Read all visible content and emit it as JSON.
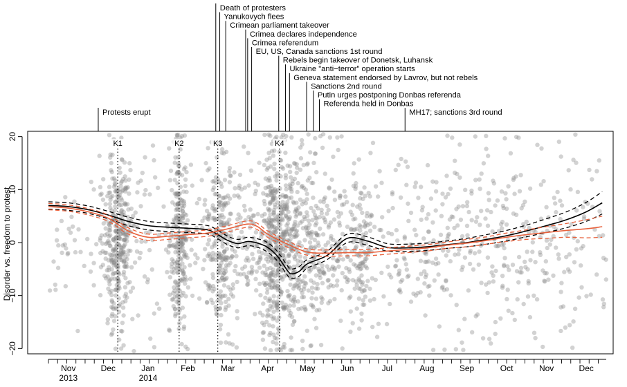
{
  "chart_data": {
    "type": "scatter",
    "title": "",
    "ylabel": "Disorder vs. freedom to protest",
    "xlabel": "",
    "ylim": [
      -21,
      21
    ],
    "xlim": [
      0,
      14.0
    ],
    "grid": false,
    "y_ticks": [
      -20,
      -10,
      0,
      10,
      20
    ],
    "month_ticks": [
      {
        "x": 0.5,
        "label": "Nov",
        "year": "2013"
      },
      {
        "x": 1.5,
        "label": "Dec",
        "year": ""
      },
      {
        "x": 2.5,
        "label": "Jan",
        "year": "2014"
      },
      {
        "x": 3.5,
        "label": "Feb",
        "year": ""
      },
      {
        "x": 4.5,
        "label": "Mar",
        "year": ""
      },
      {
        "x": 5.5,
        "label": "Apr",
        "year": ""
      },
      {
        "x": 6.5,
        "label": "May",
        "year": ""
      },
      {
        "x": 7.5,
        "label": "Jun",
        "year": ""
      },
      {
        "x": 8.5,
        "label": "Jul",
        "year": ""
      },
      {
        "x": 9.5,
        "label": "Aug",
        "year": ""
      },
      {
        "x": 10.5,
        "label": "Sep",
        "year": ""
      },
      {
        "x": 11.5,
        "label": "Oct",
        "year": ""
      },
      {
        "x": 12.5,
        "label": "Nov",
        "year": ""
      },
      {
        "x": 13.5,
        "label": "Dec",
        "year": ""
      }
    ],
    "k_lines": [
      {
        "label": "K1",
        "x": 1.74
      },
      {
        "label": "K2",
        "x": 3.28
      },
      {
        "label": "K3",
        "x": 4.25
      },
      {
        "label": "K4",
        "x": 5.8
      }
    ],
    "events": [
      {
        "label": "Protests erupt",
        "x": 1.25
      },
      {
        "label": "Death of protesters",
        "x": 4.2
      },
      {
        "label": "Yanukovych flees",
        "x": 4.3
      },
      {
        "label": "Crimean parliament takeover",
        "x": 4.45
      },
      {
        "label": "Crimea declares independence",
        "x": 4.95
      },
      {
        "label": "Crimea referendum",
        "x": 5.0
      },
      {
        "label": "EU, US, Canada sanctions 1st round",
        "x": 5.1
      },
      {
        "label": "Rebels begin takeover of Donetsk, Luhansk",
        "x": 5.78
      },
      {
        "label": "Ukraine \"anti−terror\" operation starts",
        "x": 5.95
      },
      {
        "label": "Geneva statement endorsed by Lavrov, but not rebels",
        "x": 6.05
      },
      {
        "label": "Sanctions 2nd round",
        "x": 6.48
      },
      {
        "label": "Putin urges postponing Donbas referenda",
        "x": 6.65
      },
      {
        "label": "Referenda held in Donbas",
        "x": 6.8
      },
      {
        "label": "MH17; sanctions 3rd round",
        "x": 8.95
      }
    ],
    "series": [
      {
        "color": "#000000",
        "style": "solid",
        "x": [
          0,
          0.5,
          1.0,
          1.5,
          2.0,
          2.5,
          3.0,
          3.5,
          4.0,
          4.25,
          4.5,
          4.75,
          5.0,
          5.25,
          5.5,
          5.75,
          6.0,
          6.1,
          6.3,
          6.5,
          7.0,
          7.5,
          8.0,
          8.5,
          9.0,
          9.5,
          10.0,
          10.5,
          11.0,
          11.5,
          12.0,
          12.5,
          13.0,
          13.5,
          13.9
        ],
        "y": [
          7.0,
          6.8,
          6.2,
          5.2,
          4.0,
          3.2,
          2.9,
          2.7,
          2.4,
          1.5,
          0.4,
          -0.2,
          0.2,
          -0.1,
          -0.9,
          -2.6,
          -5.3,
          -5.9,
          -5.4,
          -4.0,
          -2.4,
          0.8,
          0.3,
          -0.9,
          -1.0,
          -0.8,
          -0.4,
          0.0,
          0.6,
          1.3,
          2.2,
          3.2,
          4.3,
          5.8,
          7.5
        ]
      },
      {
        "color": "#000000",
        "style": "dashed",
        "x": [
          0,
          0.5,
          1.0,
          1.5,
          2.0,
          2.5,
          3.0,
          3.5,
          4.0,
          4.25,
          4.5,
          4.75,
          5.0,
          5.25,
          5.5,
          5.75,
          6.0,
          6.1,
          6.3,
          6.5,
          7.0,
          7.5,
          8.0,
          8.5,
          9.0,
          9.5,
          10.0,
          10.5,
          11.0,
          11.5,
          12.0,
          12.5,
          13.0,
          13.5,
          13.9
        ],
        "y": [
          7.7,
          7.5,
          6.9,
          5.9,
          4.8,
          4.0,
          3.7,
          3.5,
          3.2,
          2.3,
          1.2,
          0.6,
          1.0,
          0.7,
          0.0,
          -1.7,
          -4.4,
          -5.0,
          -4.5,
          -3.2,
          -1.6,
          1.6,
          1.1,
          -0.2,
          -0.3,
          -0.1,
          0.3,
          0.8,
          1.5,
          2.3,
          3.3,
          4.5,
          5.8,
          7.6,
          9.6
        ]
      },
      {
        "color": "#000000",
        "style": "dashed",
        "x": [
          0,
          0.5,
          1.0,
          1.5,
          2.0,
          2.5,
          3.0,
          3.5,
          4.0,
          4.25,
          4.5,
          4.75,
          5.0,
          5.25,
          5.5,
          5.75,
          6.0,
          6.1,
          6.3,
          6.5,
          7.0,
          7.5,
          8.0,
          8.5,
          9.0,
          9.5,
          10.0,
          10.5,
          11.0,
          11.5,
          12.0,
          12.5,
          13.0,
          13.5,
          13.9
        ],
        "y": [
          6.3,
          6.1,
          5.5,
          4.5,
          3.2,
          2.4,
          2.1,
          1.9,
          1.6,
          0.7,
          -0.4,
          -1.0,
          -0.6,
          -0.9,
          -1.8,
          -3.5,
          -6.2,
          -6.8,
          -6.3,
          -4.8,
          -3.2,
          0.0,
          -0.5,
          -1.6,
          -1.7,
          -1.5,
          -1.1,
          -0.8,
          -0.3,
          0.3,
          1.1,
          1.9,
          2.8,
          4.0,
          5.4
        ]
      },
      {
        "color": "#e8613c",
        "style": "solid",
        "x": [
          0,
          0.5,
          1.0,
          1.5,
          2.0,
          2.5,
          3.0,
          3.5,
          4.0,
          4.5,
          5.0,
          5.25,
          5.5,
          6.0,
          6.5,
          7.0,
          7.5,
          8.0,
          8.5,
          9.0,
          9.5,
          10.0,
          10.5,
          11.0,
          11.5,
          12.0,
          12.5,
          13.0,
          13.5,
          13.9
        ],
        "y": [
          6.8,
          6.5,
          5.8,
          4.6,
          2.2,
          1.0,
          1.2,
          1.5,
          1.8,
          2.6,
          3.5,
          3.0,
          1.6,
          -0.3,
          -1.8,
          -2.0,
          -1.9,
          -1.9,
          -1.6,
          -1.3,
          -1.0,
          -0.5,
          -0.1,
          0.4,
          1.0,
          1.5,
          1.9,
          2.3,
          2.6,
          3.0
        ]
      },
      {
        "color": "#e8613c",
        "style": "dashed",
        "x": [
          0,
          0.5,
          1.0,
          1.5,
          2.0,
          2.5,
          3.0,
          3.5,
          4.0,
          4.5,
          5.0,
          5.25,
          5.5,
          6.0,
          6.5,
          7.0,
          7.5,
          8.0,
          8.5,
          9.0,
          9.5,
          10.0,
          10.5,
          11.0,
          11.5,
          12.0,
          12.5,
          13.0,
          13.5,
          13.9
        ],
        "y": [
          7.4,
          7.1,
          6.4,
          5.2,
          2.8,
          1.6,
          1.8,
          2.1,
          2.4,
          3.2,
          4.1,
          3.6,
          2.2,
          0.3,
          -1.2,
          -1.4,
          -1.3,
          -1.3,
          -1.0,
          -0.7,
          -0.4,
          0.1,
          0.6,
          1.1,
          1.8,
          2.4,
          3.0,
          3.6,
          4.3,
          5.0
        ]
      },
      {
        "color": "#e8613c",
        "style": "dashed",
        "x": [
          0,
          0.5,
          1.0,
          1.5,
          2.0,
          2.5,
          3.0,
          3.5,
          4.0,
          4.5,
          5.0,
          5.25,
          5.5,
          6.0,
          6.5,
          7.0,
          7.5,
          8.0,
          8.5,
          9.0,
          9.5,
          10.0,
          10.5,
          11.0,
          11.5,
          12.0,
          12.5,
          13.0,
          13.5,
          13.9
        ],
        "y": [
          6.2,
          5.9,
          5.2,
          4.0,
          1.6,
          0.4,
          0.6,
          0.9,
          1.2,
          2.0,
          2.9,
          2.4,
          1.0,
          -0.9,
          -2.4,
          -2.6,
          -2.5,
          -2.5,
          -2.2,
          -1.9,
          -1.6,
          -1.1,
          -0.8,
          -0.3,
          0.2,
          0.6,
          0.8,
          1.0,
          0.9,
          1.0
        ]
      }
    ],
    "point_clusters": [
      {
        "x": 1.74,
        "spread": 0.18,
        "n": 320,
        "sd": 8
      },
      {
        "x": 3.28,
        "spread": 0.12,
        "n": 220,
        "sd": 9
      },
      {
        "x": 4.3,
        "spread": 0.15,
        "n": 160,
        "sd": 9
      },
      {
        "x": 5.6,
        "spread": 0.15,
        "n": 200,
        "sd": 9
      },
      {
        "x": 5.95,
        "spread": 0.25,
        "n": 300,
        "sd": 9
      },
      {
        "x": 6.6,
        "spread": 0.35,
        "n": 160,
        "sd": 9
      },
      {
        "x": 7.85,
        "spread": 0.12,
        "n": 80,
        "sd": 6
      },
      {
        "x": 2.5,
        "spread": 1.2,
        "n": 140,
        "sd": 9
      },
      {
        "x": 4.8,
        "spread": 0.5,
        "n": 160,
        "sd": 8
      },
      {
        "x": 7.2,
        "spread": 0.6,
        "n": 140,
        "sd": 9
      },
      {
        "x": 9.6,
        "spread": 1.4,
        "n": 240,
        "sd": 9
      },
      {
        "x": 12.2,
        "spread": 1.6,
        "n": 240,
        "sd": 9
      },
      {
        "x": 0.6,
        "spread": 0.5,
        "n": 25,
        "sd": 6
      }
    ],
    "point_color": "#8a8a8a"
  }
}
